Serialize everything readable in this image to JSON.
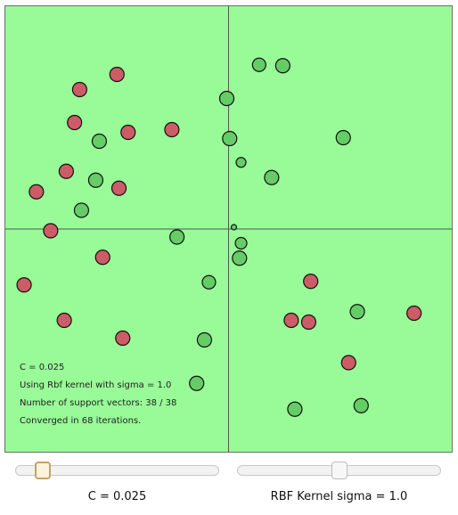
{
  "info": {
    "c_line": "C = 0.025",
    "kernel_line": "Using Rbf kernel with sigma = 1.0",
    "sv_line": "Number of support vectors: 38 / 38",
    "iter_line": "Converged in 68 iterations."
  },
  "controls": {
    "c_label": "C = 0.025",
    "c_position": 0.1,
    "sigma_label": "RBF Kernel sigma = 1.0",
    "sigma_position": 0.5
  },
  "colors": {
    "background": "#98fb98",
    "class_positive": "#66cc66",
    "class_negative": "#cc5c66",
    "axis": "#555555"
  },
  "plot": {
    "x_range": [
      -1,
      1
    ],
    "y_range": [
      -1,
      1
    ],
    "points": [
      {
        "x": -0.5,
        "y": 0.694,
        "label": -1,
        "r": 8
      },
      {
        "x": -0.667,
        "y": 0.626,
        "label": -1,
        "r": 8
      },
      {
        "x": -0.69,
        "y": 0.478,
        "label": -1,
        "r": 8
      },
      {
        "x": -0.45,
        "y": 0.434,
        "label": -1,
        "r": 8
      },
      {
        "x": -0.254,
        "y": 0.446,
        "label": -1,
        "r": 8
      },
      {
        "x": -0.727,
        "y": 0.259,
        "label": -1,
        "r": 8
      },
      {
        "x": -0.861,
        "y": 0.167,
        "label": -1,
        "r": 8
      },
      {
        "x": -0.491,
        "y": 0.183,
        "label": -1,
        "r": 8
      },
      {
        "x": -0.797,
        "y": -0.008,
        "label": -1,
        "r": 8
      },
      {
        "x": -0.564,
        "y": -0.127,
        "label": -1,
        "r": 8
      },
      {
        "x": -0.916,
        "y": -0.251,
        "label": -1,
        "r": 8
      },
      {
        "x": -0.736,
        "y": -0.41,
        "label": -1,
        "r": 8
      },
      {
        "x": -0.474,
        "y": -0.49,
        "label": -1,
        "r": 8
      },
      {
        "x": 0.368,
        "y": -0.235,
        "label": -1,
        "r": 8
      },
      {
        "x": 0.281,
        "y": -0.41,
        "label": -1,
        "r": 8
      },
      {
        "x": 0.359,
        "y": -0.418,
        "label": -1,
        "r": 8
      },
      {
        "x": 0.831,
        "y": -0.378,
        "label": -1,
        "r": 8
      },
      {
        "x": 0.538,
        "y": -0.6,
        "label": -1,
        "r": 8
      },
      {
        "x": 0.137,
        "y": 0.737,
        "label": 1,
        "r": 7.5
      },
      {
        "x": 0.243,
        "y": 0.733,
        "label": 1,
        "r": 8
      },
      {
        "x": -0.008,
        "y": 0.586,
        "label": 1,
        "r": 8
      },
      {
        "x": -0.579,
        "y": 0.394,
        "label": 1,
        "r": 8
      },
      {
        "x": 0.005,
        "y": 0.406,
        "label": 1,
        "r": 8
      },
      {
        "x": 0.514,
        "y": 0.41,
        "label": 1,
        "r": 8
      },
      {
        "x": 0.056,
        "y": 0.299,
        "label": 1,
        "r": 5.5
      },
      {
        "x": 0.193,
        "y": 0.231,
        "label": 1,
        "r": 8
      },
      {
        "x": -0.595,
        "y": 0.219,
        "label": 1,
        "r": 8
      },
      {
        "x": -0.659,
        "y": 0.084,
        "label": 1,
        "r": 8
      },
      {
        "x": 0.024,
        "y": 0.008,
        "label": 1,
        "r": 3
      },
      {
        "x": -0.231,
        "y": -0.036,
        "label": 1,
        "r": 8
      },
      {
        "x": 0.056,
        "y": -0.064,
        "label": 1,
        "r": 6.5
      },
      {
        "x": 0.049,
        "y": -0.131,
        "label": 1,
        "r": 8
      },
      {
        "x": -0.088,
        "y": -0.239,
        "label": 1,
        "r": 7.5
      },
      {
        "x": 0.577,
        "y": -0.371,
        "label": 1,
        "r": 8
      },
      {
        "x": -0.108,
        "y": -0.498,
        "label": 1,
        "r": 8
      },
      {
        "x": -0.143,
        "y": -0.693,
        "label": 1,
        "r": 8
      },
      {
        "x": 0.297,
        "y": -0.809,
        "label": 1,
        "r": 8
      },
      {
        "x": 0.594,
        "y": -0.793,
        "label": 1,
        "r": 8
      }
    ]
  }
}
